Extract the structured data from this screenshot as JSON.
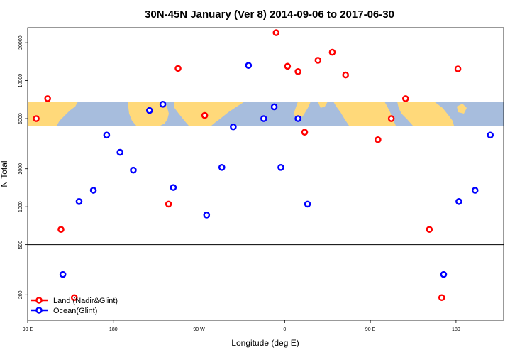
{
  "chart_data": {
    "type": "scatter",
    "title": "30N-45N January (Ver 8)   2014-09-06 to 2017-06-30",
    "xlabel": "Longitude (deg E)",
    "ylabel": "N Total",
    "xlim": [
      90,
      590
    ],
    "ylim_log10": [
      2.1,
      4.42
    ],
    "y_scale": "log",
    "reference_line_y": 500,
    "background_map_band_y": [
      5500,
      8900
    ],
    "colors": {
      "land": "#ff0000",
      "ocean": "#0000ff",
      "map_land": "#ffd97a",
      "map_ocean": "#a7bddd"
    },
    "x_ticks": [
      {
        "value": 90,
        "label": "90 E"
      },
      {
        "value": 180,
        "label": "180"
      },
      {
        "value": 270,
        "label": "90 W"
      },
      {
        "value": 360,
        "label": "0"
      },
      {
        "value": 450,
        "label": "90 E"
      },
      {
        "value": 540,
        "label": "180"
      }
    ],
    "y_ticks": [
      {
        "value": 200,
        "label": "200"
      },
      {
        "value": 500,
        "label": "500"
      },
      {
        "value": 1000,
        "label": "1000"
      },
      {
        "value": 2000,
        "label": "2000"
      },
      {
        "value": 5000,
        "label": "5000"
      },
      {
        "value": 10000,
        "label": "10000"
      },
      {
        "value": 20000,
        "label": "20000"
      }
    ],
    "legend_position": "bottom-left",
    "series": [
      {
        "name": "Land (Nadir&Glint)",
        "key": "land",
        "x": [
          99,
          111,
          125,
          139,
          238,
          248,
          276,
          351,
          363,
          374,
          381,
          395,
          410,
          424,
          458,
          472,
          487,
          512,
          525,
          542
        ],
        "y": [
          5000,
          7200,
          660,
          190,
          1050,
          12500,
          5300,
          24000,
          13000,
          11800,
          3900,
          14500,
          16800,
          11100,
          3400,
          5000,
          7200,
          660,
          190,
          12400
        ]
      },
      {
        "name": "Ocean(Glint)",
        "key": "ocean",
        "x": [
          127,
          144,
          159,
          173,
          187,
          201,
          218,
          232,
          243,
          278,
          294,
          306,
          322,
          338,
          349,
          356,
          374,
          384,
          527,
          543,
          560,
          576
        ],
        "y": [
          290,
          1100,
          1350,
          3700,
          2700,
          1950,
          5800,
          6500,
          1420,
          860,
          2050,
          4300,
          13200,
          5000,
          6200,
          2050,
          5000,
          1050,
          290,
          1100,
          1350,
          3700
        ]
      }
    ]
  }
}
